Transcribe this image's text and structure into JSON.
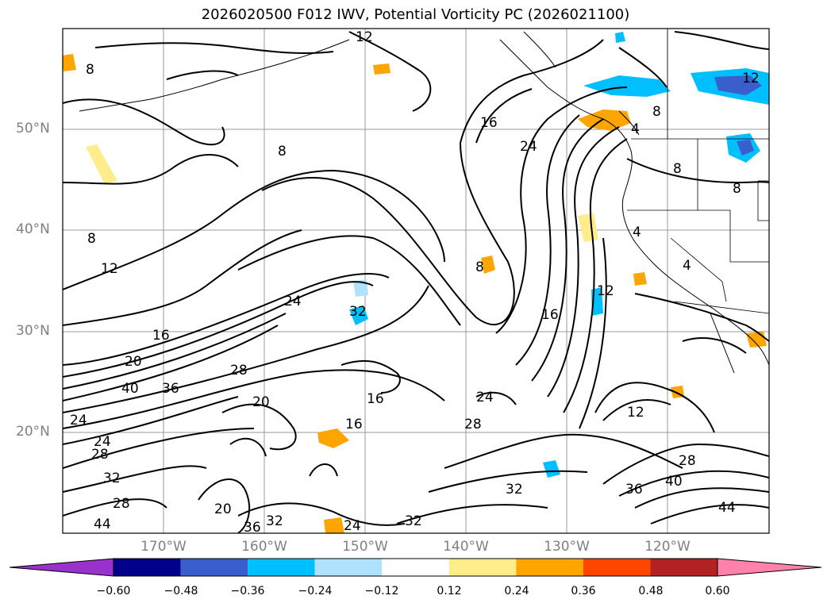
{
  "title": "2026020500 F012 IWV, Potential Vorticity PC (2026021100)",
  "lat_labels": [
    "50°N",
    "40°N",
    "30°N",
    "20°N"
  ],
  "lon_labels": [
    "170°W",
    "160°W",
    "150°W",
    "140°W",
    "130°W",
    "120°W"
  ],
  "colorbar": {
    "ticks": [
      "−0.60",
      "−0.48",
      "−0.36",
      "−0.24",
      "−0.12",
      "0.12",
      "0.24",
      "0.36",
      "0.48",
      "0.60"
    ],
    "colors": [
      "#9932cc",
      "#00008b",
      "#3a5fcd",
      "#00bfff",
      "#b0e2ff",
      "#ffffff",
      "#ffec8b",
      "#ffa500",
      "#ff4500",
      "#b22222",
      "#ff82ab"
    ]
  },
  "contour_labels": [
    "12",
    "8",
    "16",
    "24",
    "8",
    "4",
    "8",
    "12",
    "8",
    "8",
    "8",
    "4",
    "8",
    "4",
    "12",
    "12",
    "16",
    "24",
    "32",
    "16",
    "20",
    "40",
    "36",
    "28",
    "20",
    "16",
    "16",
    "24",
    "28",
    "12",
    "28",
    "36",
    "40",
    "44",
    "32",
    "20",
    "36",
    "32",
    "24",
    "32",
    "24",
    "28",
    "32",
    "28",
    "24",
    "44"
  ],
  "colors": {
    "coast": "#000000",
    "grid": "#999999",
    "contour": "#000000"
  }
}
